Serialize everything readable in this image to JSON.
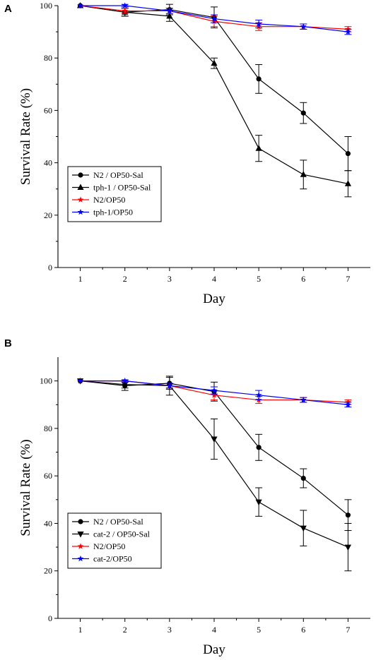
{
  "colors": {
    "black": "#000000",
    "red": "#ff0000",
    "blue": "#0000ff"
  },
  "chart_data": [
    {
      "panel_label": "A",
      "type": "line",
      "xlabel": "Day",
      "ylabel": "Survival Rate (%)",
      "xlim": [
        0.5,
        7.5
      ],
      "ylim": [
        0,
        100
      ],
      "x_ticks": [
        1,
        2,
        3,
        4,
        5,
        6,
        7
      ],
      "y_ticks": [
        0,
        20,
        40,
        60,
        80,
        100
      ],
      "legend_position": "lower-left",
      "x": [
        1,
        2,
        3,
        4,
        5,
        6,
        7
      ],
      "series": [
        {
          "name": "N2 / OP50-Sal",
          "color": "#000000",
          "marker": "circle",
          "values": [
            100,
            97.5,
            98.5,
            95.5,
            72,
            59,
            43.5
          ],
          "errors": [
            0,
            1.5,
            2,
            4,
            5.5,
            4,
            6.5
          ]
        },
        {
          "name": "tph-1 / OP50-Sal",
          "color": "#000000",
          "marker": "triangle-up",
          "values": [
            100,
            97.5,
            96,
            78,
            45.5,
            35.5,
            32
          ],
          "errors": [
            0,
            1.5,
            2,
            2,
            5,
            5.5,
            5
          ]
        },
        {
          "name": "N2/OP50",
          "color": "#ff0000",
          "marker": "star",
          "values": [
            100,
            98,
            98,
            94,
            92,
            92,
            91
          ],
          "errors": [
            0,
            1,
            1,
            2,
            1.5,
            1,
            1
          ]
        },
        {
          "name": "tph-1/OP50",
          "color": "#0000ff",
          "marker": "star",
          "values": [
            100,
            100,
            98,
            95,
            93,
            92,
            90
          ],
          "errors": [
            0,
            0.5,
            1,
            1.5,
            1.5,
            1,
            1
          ]
        }
      ]
    },
    {
      "panel_label": "B",
      "type": "line",
      "xlabel": "Day",
      "ylabel": "Survival Rate (%)",
      "xlim": [
        0.5,
        7.5
      ],
      "ylim": [
        0,
        110
      ],
      "x_ticks": [
        1,
        2,
        3,
        4,
        5,
        6,
        7
      ],
      "y_ticks": [
        0,
        20,
        40,
        60,
        80,
        100
      ],
      "legend_position": "lower-left",
      "x": [
        1,
        2,
        3,
        4,
        5,
        6,
        7
      ],
      "series": [
        {
          "name": "N2 / OP50-Sal",
          "color": "#000000",
          "marker": "circle",
          "values": [
            100,
            98,
            99,
            95.5,
            72,
            59,
            43.5
          ],
          "errors": [
            0,
            2,
            2.5,
            4,
            5.5,
            4,
            6.5
          ]
        },
        {
          "name": "cat-2 / OP50-Sal",
          "color": "#000000",
          "marker": "triangle-down",
          "values": [
            100,
            98.5,
            98,
            75.5,
            49,
            38,
            30
          ],
          "errors": [
            0,
            1.5,
            4,
            8.5,
            6,
            7.5,
            10
          ]
        },
        {
          "name": "N2/OP50",
          "color": "#ff0000",
          "marker": "star",
          "values": [
            100,
            100,
            98,
            94,
            92,
            92,
            91
          ],
          "errors": [
            0,
            0.5,
            1,
            2,
            1.5,
            1,
            1
          ]
        },
        {
          "name": "cat-2/OP50",
          "color": "#0000ff",
          "marker": "star",
          "values": [
            100,
            100,
            98,
            96,
            94,
            92,
            90
          ],
          "errors": [
            0,
            0.5,
            1,
            1.5,
            2,
            1,
            1
          ]
        }
      ]
    }
  ]
}
